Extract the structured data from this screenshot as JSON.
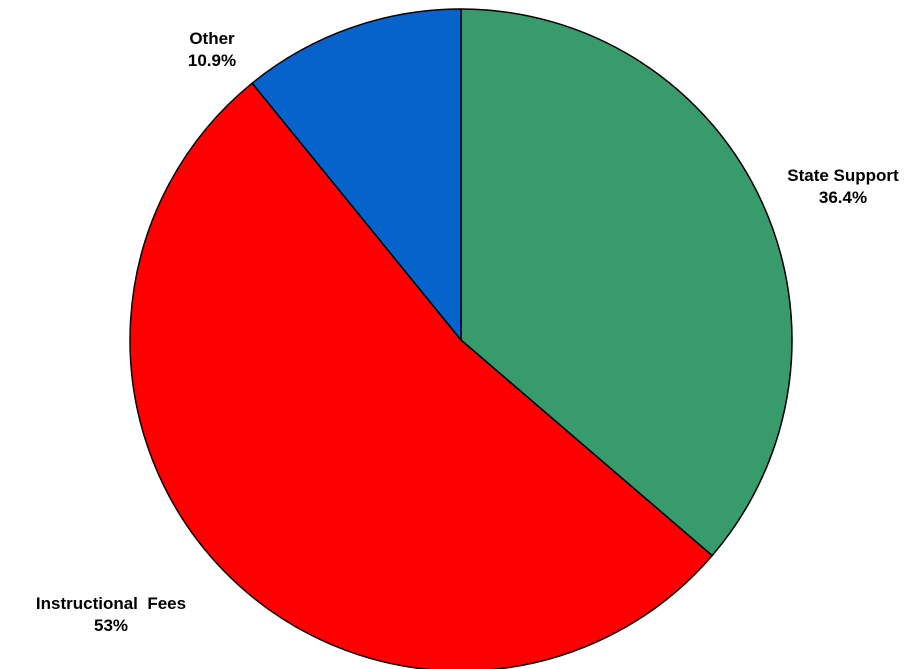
{
  "chart_data": {
    "type": "pie",
    "title": "",
    "slices": [
      {
        "name": "State Support",
        "value": 36.4,
        "label": "36.4%",
        "color": "#379B6C"
      },
      {
        "name": "Instructional  Fees",
        "value": 53,
        "label": "53%",
        "color": "#FF0000"
      },
      {
        "name": "Other",
        "value": 10.9,
        "label": "10.9%",
        "color": "#0563CB"
      }
    ],
    "start": "12 o'clock",
    "direction": "clockwise",
    "legend": "none",
    "labels": "outside, category above percentage"
  }
}
